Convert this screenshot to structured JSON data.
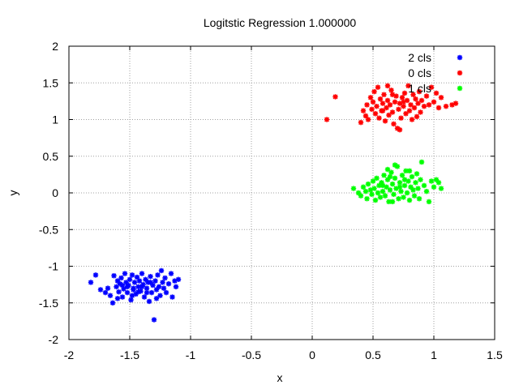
{
  "chart_data": {
    "type": "scatter",
    "title": "Logitstic Regression 1.000000",
    "xlabel": "x",
    "ylabel": "y",
    "xlim": [
      -2,
      1.5
    ],
    "ylim": [
      -2,
      2
    ],
    "xticks": [
      -2,
      -1.5,
      -1,
      -0.5,
      0,
      0.5,
      1,
      1.5
    ],
    "yticks": [
      -2,
      -1.5,
      -1,
      -0.5,
      0,
      0.5,
      1,
      1.5,
      2
    ],
    "xtick_labels": [
      "-2",
      "-1.5",
      "-1",
      "-0.5",
      "0",
      "0.5",
      "1",
      "1.5"
    ],
    "ytick_labels": [
      "-2",
      "-1.5",
      "-1",
      "-0.5",
      "0",
      "0.5",
      "1",
      "1.5",
      "2"
    ],
    "grid": true,
    "legend_position": "top-right",
    "series": [
      {
        "name": "2 cls",
        "color": "#0000ff",
        "points": [
          [
            -1.82,
            -1.22
          ],
          [
            -1.78,
            -1.12
          ],
          [
            -1.74,
            -1.32
          ],
          [
            -1.7,
            -1.36
          ],
          [
            -1.68,
            -1.3
          ],
          [
            -1.66,
            -1.4
          ],
          [
            -1.64,
            -1.5
          ],
          [
            -1.63,
            -1.13
          ],
          [
            -1.61,
            -1.28
          ],
          [
            -1.6,
            -1.2
          ],
          [
            -1.59,
            -1.35
          ],
          [
            -1.58,
            -1.24
          ],
          [
            -1.57,
            -1.16
          ],
          [
            -1.56,
            -1.42
          ],
          [
            -1.55,
            -1.31
          ],
          [
            -1.54,
            -1.1
          ],
          [
            -1.53,
            -1.22
          ],
          [
            -1.52,
            -1.36
          ],
          [
            -1.51,
            -1.26
          ],
          [
            -1.5,
            -1.18
          ],
          [
            -1.49,
            -1.46
          ],
          [
            -1.48,
            -1.12
          ],
          [
            -1.47,
            -1.3
          ],
          [
            -1.46,
            -1.22
          ],
          [
            -1.45,
            -1.38
          ],
          [
            -1.44,
            -1.15
          ],
          [
            -1.43,
            -1.28
          ],
          [
            -1.42,
            -1.2
          ],
          [
            -1.41,
            -1.34
          ],
          [
            -1.4,
            -1.1
          ],
          [
            -1.39,
            -1.25
          ],
          [
            -1.38,
            -1.42
          ],
          [
            -1.37,
            -1.18
          ],
          [
            -1.36,
            -1.3
          ],
          [
            -1.35,
            -1.22
          ],
          [
            -1.34,
            -1.48
          ],
          [
            -1.33,
            -1.14
          ],
          [
            -1.32,
            -1.36
          ],
          [
            -1.31,
            -1.26
          ],
          [
            -1.3,
            -1.73
          ],
          [
            -1.29,
            -1.2
          ],
          [
            -1.28,
            -1.32
          ],
          [
            -1.27,
            -1.12
          ],
          [
            -1.26,
            -1.28
          ],
          [
            -1.25,
            -1.4
          ],
          [
            -1.24,
            -1.06
          ],
          [
            -1.23,
            -1.22
          ],
          [
            -1.22,
            -1.3
          ],
          [
            -1.21,
            -1.16
          ],
          [
            -1.2,
            -1.36
          ],
          [
            -1.18,
            -1.24
          ],
          [
            -1.16,
            -1.1
          ],
          [
            -1.15,
            -1.42
          ],
          [
            -1.13,
            -1.2
          ],
          [
            -1.12,
            -1.28
          ],
          [
            -1.1,
            -1.18
          ],
          [
            -1.47,
            -1.32
          ],
          [
            -1.52,
            -1.28
          ],
          [
            -1.43,
            -1.35
          ],
          [
            -1.4,
            -1.28
          ],
          [
            -1.36,
            -1.36
          ],
          [
            -1.33,
            -1.22
          ],
          [
            -1.48,
            -1.4
          ],
          [
            -1.56,
            -1.26
          ],
          [
            -1.6,
            -1.44
          ],
          [
            -1.28,
            -1.44
          ]
        ]
      },
      {
        "name": "0 cls",
        "color": "#ff0000",
        "points": [
          [
            0.12,
            1.0
          ],
          [
            0.19,
            1.31
          ],
          [
            0.4,
            0.96
          ],
          [
            0.42,
            1.12
          ],
          [
            0.44,
            1.05
          ],
          [
            0.45,
            1.2
          ],
          [
            0.46,
            1.0
          ],
          [
            0.48,
            1.3
          ],
          [
            0.49,
            1.14
          ],
          [
            0.5,
            1.24
          ],
          [
            0.51,
            1.38
          ],
          [
            0.52,
            1.08
          ],
          [
            0.53,
            1.18
          ],
          [
            0.54,
            1.44
          ],
          [
            0.55,
            1.02
          ],
          [
            0.56,
            1.28
          ],
          [
            0.57,
            1.12
          ],
          [
            0.58,
            1.22
          ],
          [
            0.59,
            1.34
          ],
          [
            0.6,
            0.98
          ],
          [
            0.61,
            1.16
          ],
          [
            0.62,
            1.26
          ],
          [
            0.63,
            1.06
          ],
          [
            0.64,
            1.2
          ],
          [
            0.65,
            1.4
          ],
          [
            0.66,
            1.1
          ],
          [
            0.67,
            0.94
          ],
          [
            0.68,
            1.24
          ],
          [
            0.69,
            1.32
          ],
          [
            0.7,
            0.88
          ],
          [
            0.71,
            1.14
          ],
          [
            0.72,
            1.22
          ],
          [
            0.73,
            1.02
          ],
          [
            0.74,
            1.3
          ],
          [
            0.75,
            1.18
          ],
          [
            0.76,
            1.36
          ],
          [
            0.77,
            1.08
          ],
          [
            0.78,
            1.26
          ],
          [
            0.79,
            1.46
          ],
          [
            0.8,
            1.12
          ],
          [
            0.81,
            1.2
          ],
          [
            0.82,
            1.0
          ],
          [
            0.83,
            1.34
          ],
          [
            0.84,
            1.16
          ],
          [
            0.85,
            1.28
          ],
          [
            0.86,
            1.04
          ],
          [
            0.87,
            1.22
          ],
          [
            0.88,
            1.38
          ],
          [
            0.89,
            1.1
          ],
          [
            0.9,
            1.26
          ],
          [
            0.92,
            1.18
          ],
          [
            0.94,
            1.32
          ],
          [
            0.96,
            1.2
          ],
          [
            0.98,
            1.44
          ],
          [
            1.0,
            1.24
          ],
          [
            1.02,
            1.36
          ],
          [
            1.04,
            1.16
          ],
          [
            1.06,
            1.3
          ],
          [
            1.1,
            1.18
          ],
          [
            1.15,
            1.2
          ],
          [
            1.18,
            1.22
          ],
          [
            0.66,
            1.34
          ],
          [
            0.72,
            0.86
          ],
          [
            0.62,
            1.46
          ],
          [
            0.75,
            1.24
          ],
          [
            0.58,
            1.12
          ]
        ]
      },
      {
        "name": "1 cls",
        "color": "#00ff00",
        "points": [
          [
            0.34,
            0.06
          ],
          [
            0.38,
            0.0
          ],
          [
            0.4,
            -0.04
          ],
          [
            0.42,
            0.08
          ],
          [
            0.44,
            0.02
          ],
          [
            0.45,
            -0.08
          ],
          [
            0.46,
            0.12
          ],
          [
            0.48,
            0.04
          ],
          [
            0.49,
            -0.02
          ],
          [
            0.5,
            0.16
          ],
          [
            0.51,
            0.06
          ],
          [
            0.52,
            -0.1
          ],
          [
            0.53,
            0.2
          ],
          [
            0.54,
            0.0
          ],
          [
            0.55,
            0.1
          ],
          [
            0.56,
            -0.06
          ],
          [
            0.57,
            0.14
          ],
          [
            0.58,
            0.02
          ],
          [
            0.59,
            0.24
          ],
          [
            0.6,
            -0.04
          ],
          [
            0.61,
            0.08
          ],
          [
            0.62,
            0.18
          ],
          [
            0.63,
            -0.12
          ],
          [
            0.64,
            0.04
          ],
          [
            0.65,
            0.28
          ],
          [
            0.66,
            0.12
          ],
          [
            0.67,
            -0.02
          ],
          [
            0.68,
            0.2
          ],
          [
            0.69,
            0.06
          ],
          [
            0.7,
            0.36
          ],
          [
            0.71,
            -0.08
          ],
          [
            0.72,
            0.14
          ],
          [
            0.73,
            0.02
          ],
          [
            0.74,
            0.24
          ],
          [
            0.75,
            -0.06
          ],
          [
            0.76,
            0.1
          ],
          [
            0.77,
            0.3
          ],
          [
            0.78,
            0.0
          ],
          [
            0.79,
            0.16
          ],
          [
            0.8,
            -0.1
          ],
          [
            0.81,
            0.08
          ],
          [
            0.82,
            0.22
          ],
          [
            0.83,
            0.04
          ],
          [
            0.84,
            -0.04
          ],
          [
            0.85,
            0.14
          ],
          [
            0.86,
            0.26
          ],
          [
            0.87,
            0.06
          ],
          [
            0.88,
            -0.08
          ],
          [
            0.89,
            0.18
          ],
          [
            0.9,
            0.42
          ],
          [
            0.92,
            0.1
          ],
          [
            0.94,
            0.02
          ],
          [
            0.96,
            -0.12
          ],
          [
            0.98,
            0.16
          ],
          [
            1.0,
            0.08
          ],
          [
            1.02,
            0.18
          ],
          [
            1.04,
            0.14
          ],
          [
            1.06,
            0.06
          ],
          [
            0.62,
            0.32
          ],
          [
            0.68,
            0.38
          ],
          [
            0.58,
            0.1
          ],
          [
            0.72,
            0.08
          ],
          [
            0.76,
            0.18
          ],
          [
            0.66,
            -0.12
          ],
          [
            0.8,
            0.3
          ],
          [
            0.64,
            0.22
          ]
        ]
      }
    ]
  }
}
